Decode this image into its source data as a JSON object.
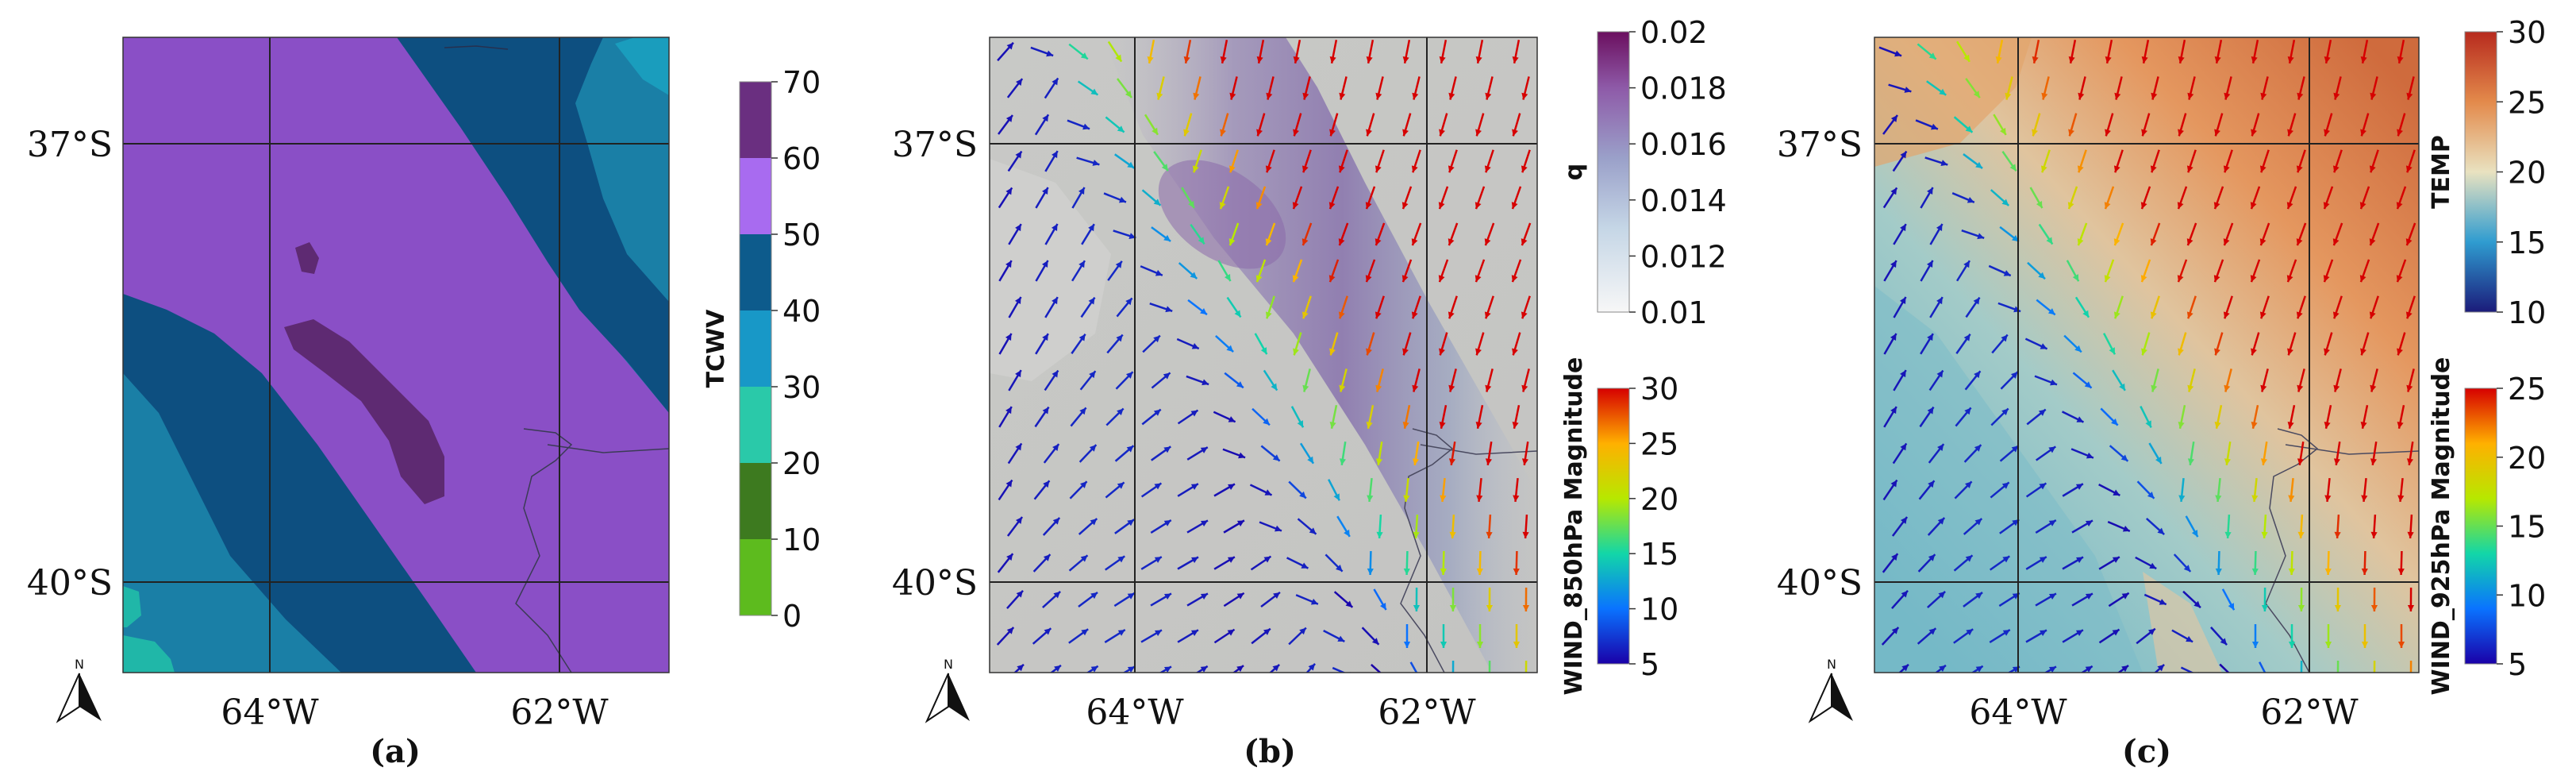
{
  "panels": [
    {
      "id": "a",
      "caption": "(a)",
      "lat_labels": [
        "37°S",
        "40°S"
      ],
      "lon_labels": [
        "64°W",
        "62°W"
      ],
      "north_label": "N",
      "colorbars": [
        {
          "title": "TCWV",
          "type": "discrete",
          "ticks": [
            "0",
            "10",
            "20",
            "30",
            "40",
            "50",
            "60",
            "70"
          ],
          "colors": [
            "#5dbb1e",
            "#3d7a1f",
            "#2ac9a9",
            "#1898c7",
            "#0d5b8c",
            "#a86bf0",
            "#6a2f80"
          ]
        }
      ],
      "field_colors": {
        "purple": "#8a4fc6",
        "dark_blue": "#0d4f80",
        "teal": "#1a7fa6",
        "aqua": "#20b7a8",
        "max": "#5e2a72"
      }
    },
    {
      "id": "b",
      "caption": "(b)",
      "lat_labels": [
        "37°S",
        "40°S"
      ],
      "lon_labels": [
        "64°W",
        "62°W"
      ],
      "north_label": "N",
      "colorbars": [
        {
          "title": "q",
          "type": "continuous",
          "ticks": [
            "0.01",
            "0.012",
            "0.014",
            "0.016",
            "0.018",
            "0.02"
          ],
          "colors": [
            "#f7f7f7",
            "#b9cfe2",
            "#8d95c4",
            "#8c60ad",
            "#6b0f5f"
          ]
        },
        {
          "title": "WIND_850hPa Magnitude",
          "type": "continuous",
          "ticks": [
            "5",
            "10",
            "15",
            "20",
            "25",
            "30"
          ],
          "colors": [
            "#1a00a8",
            "#0a73ff",
            "#12d6a8",
            "#b7e800",
            "#ffb000",
            "#d60000"
          ]
        }
      ]
    },
    {
      "id": "c",
      "caption": "(c)",
      "lat_labels": [
        "37°S",
        "40°S"
      ],
      "lon_labels": [
        "64°W",
        "62°W"
      ],
      "north_label": "N",
      "colorbars": [
        {
          "title": "TEMP",
          "type": "continuous",
          "ticks": [
            "10",
            "15",
            "20",
            "25",
            "30"
          ],
          "colors": [
            "#1b1b7a",
            "#2f9cd0",
            "#e9e2c0",
            "#e38a4b",
            "#b72a1e"
          ]
        },
        {
          "title": "WIND_925hPa Magnitude",
          "type": "continuous",
          "ticks": [
            "5",
            "10",
            "15",
            "20",
            "25"
          ],
          "colors": [
            "#1a00a8",
            "#0a73ff",
            "#12d6a8",
            "#b7e800",
            "#ffb000",
            "#d60000"
          ]
        }
      ]
    }
  ],
  "colors": {
    "grid": "#222222",
    "frame": "#333333",
    "text": "#111111"
  }
}
